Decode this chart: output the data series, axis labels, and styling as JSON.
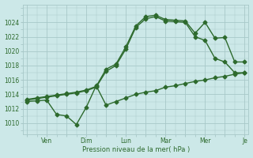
{
  "background_color": "#cce8e8",
  "grid_color": "#a8c8c8",
  "text_color": "#2d6a2d",
  "line_color": "#2d6a2d",
  "ylim": [
    1008.5,
    1026.5
  ],
  "yticks": [
    1010,
    1012,
    1014,
    1016,
    1018,
    1020,
    1022,
    1024
  ],
  "xtick_labels": [
    "",
    "Ven",
    "",
    "Dim",
    "",
    "Lun",
    "",
    "Mar",
    "",
    "Mer",
    "",
    "Je"
  ],
  "xtick_positions": [
    0,
    1,
    2,
    3,
    4,
    5,
    6,
    7,
    8,
    9,
    10,
    11
  ],
  "xlabel": "Pression niveau de la mer( hPa )",
  "series": [
    {
      "x": [
        0,
        0.5,
        1,
        1.5,
        2,
        2.5,
        3,
        3.5,
        4,
        4.5,
        5,
        5.5,
        6,
        6.5,
        7,
        7.5,
        8,
        8.5,
        9,
        9.5,
        10,
        10.5,
        11
      ],
      "y": [
        1013.2,
        1013.4,
        1013.6,
        1013.8,
        1014.0,
        1014.2,
        1014.5,
        1015.0,
        1017.2,
        1018.0,
        1020.3,
        1023.3,
        1024.5,
        1024.8,
        1024.2,
        1024.1,
        1024.0,
        1022.0,
        1021.5,
        1019.0,
        1018.5,
        1017.0,
        1017.0
      ]
    },
    {
      "x": [
        0,
        0.5,
        1,
        1.5,
        2,
        2.5,
        3,
        3.5,
        4,
        4.5,
        5,
        5.5,
        6,
        6.5,
        7,
        7.5,
        8,
        8.5,
        9,
        9.5,
        10,
        10.5,
        11
      ],
      "y": [
        1013.3,
        1013.5,
        1013.7,
        1013.9,
        1014.1,
        1014.3,
        1014.6,
        1015.1,
        1017.5,
        1018.2,
        1020.6,
        1023.5,
        1024.8,
        1025.0,
        1024.4,
        1024.3,
        1024.2,
        1022.5,
        1024.0,
        1021.8,
        1021.9,
        1018.5,
        1018.5
      ]
    },
    {
      "x": [
        0,
        0.5,
        1,
        1.5,
        2,
        2.5,
        3,
        3.5,
        4,
        4.5,
        5,
        5.5,
        6,
        6.5,
        7,
        7.5,
        8,
        8.5,
        9,
        9.5,
        10,
        10.5,
        11
      ],
      "y": [
        1013.0,
        1013.1,
        1013.2,
        1011.2,
        1011.0,
        1009.8,
        1012.2,
        1015.2,
        1012.5,
        1013.0,
        1013.5,
        1014.0,
        1014.3,
        1014.5,
        1015.0,
        1015.2,
        1015.5,
        1015.8,
        1016.0,
        1016.3,
        1016.5,
        1016.8,
        1017.0
      ]
    }
  ],
  "marker": "D",
  "markersize": 2.5,
  "linewidth": 1.0,
  "figsize": [
    3.2,
    2.0
  ],
  "dpi": 100
}
